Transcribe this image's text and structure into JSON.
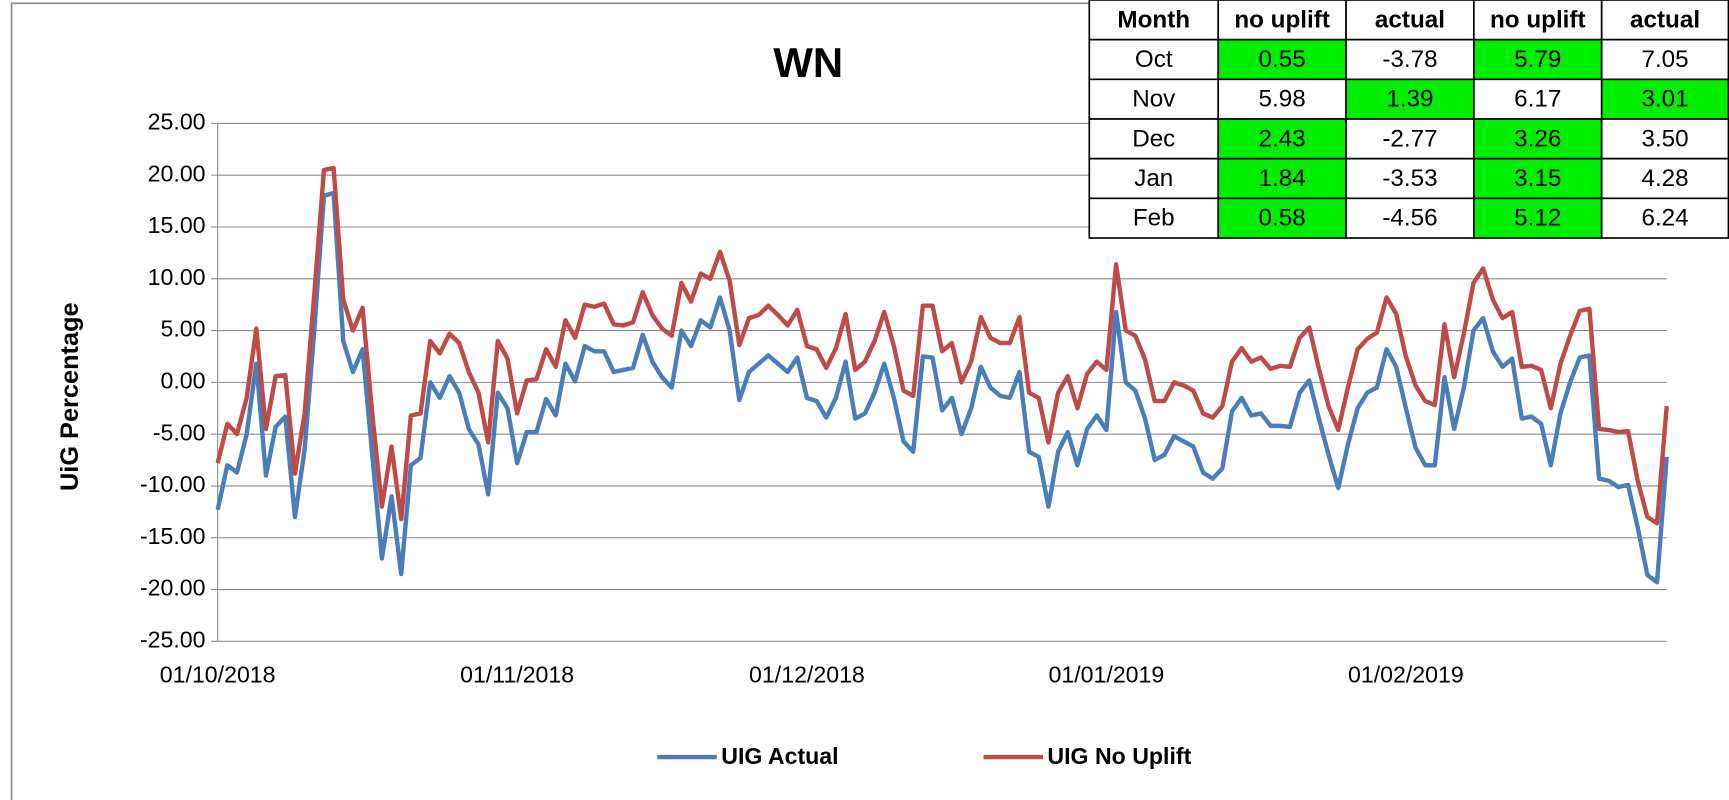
{
  "chart_data": {
    "type": "line",
    "title": "WN",
    "y_label": "UiG Percentage",
    "categories": [
      "01/10/2018",
      null,
      null,
      null,
      null,
      null,
      null,
      null,
      null,
      null,
      null,
      null,
      null,
      null,
      null,
      null,
      null,
      null,
      null,
      null,
      null,
      null,
      null,
      null,
      null,
      null,
      null,
      null,
      null,
      null,
      null,
      "01/11/2018",
      null,
      null,
      null,
      null,
      null,
      null,
      null,
      null,
      null,
      null,
      null,
      null,
      null,
      null,
      null,
      null,
      null,
      null,
      null,
      null,
      null,
      null,
      null,
      null,
      null,
      null,
      null,
      null,
      null,
      "01/12/2018",
      null,
      null,
      null,
      null,
      null,
      null,
      null,
      null,
      null,
      null,
      null,
      null,
      null,
      null,
      null,
      null,
      null,
      null,
      null,
      null,
      null,
      null,
      null,
      null,
      null,
      null,
      null,
      null,
      null,
      null,
      "01/01/2019",
      null,
      null,
      null,
      null,
      null,
      null,
      null,
      null,
      null,
      null,
      null,
      null,
      null,
      null,
      null,
      null,
      null,
      null,
      null,
      null,
      null,
      null,
      null,
      null,
      null,
      null,
      null,
      null,
      null,
      null,
      "01/02/2019",
      null,
      null,
      null,
      null,
      null,
      null,
      null,
      null,
      null,
      null,
      null,
      null,
      null,
      null,
      null,
      null,
      null,
      null,
      null,
      null,
      null,
      null,
      null,
      null,
      null,
      null,
      null
    ],
    "series": [
      {
        "name": "UIG Actual",
        "color": "#4a7ebb",
        "values": [
          -12.3,
          -8.0,
          -8.7,
          -5.0,
          1.8,
          -9.0,
          -4.3,
          -3.3,
          -13.0,
          -6.5,
          5.0,
          18.0,
          18.3,
          4.0,
          1.0,
          3.2,
          -7.0,
          -17.0,
          -11.0,
          -18.5,
          -8.0,
          -7.3,
          0.0,
          -1.5,
          0.6,
          -1.0,
          -4.5,
          -6.0,
          -10.8,
          -1.0,
          -2.5,
          -7.8,
          -4.8,
          -4.8,
          -1.6,
          -3.2,
          1.8,
          0.1,
          3.5,
          3.0,
          3.0,
          1.0,
          1.2,
          1.4,
          4.6,
          2.0,
          0.5,
          -0.5,
          5.0,
          3.5,
          6.0,
          5.3,
          8.2,
          5.0,
          -1.7,
          1.0,
          1.8,
          2.6,
          1.8,
          1.0,
          2.4,
          -1.5,
          -1.8,
          -3.4,
          -1.5,
          2.0,
          -3.5,
          -3.0,
          -1.0,
          1.8,
          -1.5,
          -5.7,
          -6.7,
          2.5,
          2.4,
          -2.7,
          -1.5,
          -5.0,
          -2.5,
          1.5,
          -0.5,
          -1.3,
          -1.5,
          1.0,
          -6.7,
          -7.2,
          -12.0,
          -6.7,
          -4.8,
          -8.0,
          -4.5,
          -3.2,
          -4.6,
          6.8,
          0.0,
          -0.8,
          -3.5,
          -7.5,
          -7.0,
          -5.2,
          -5.7,
          -6.2,
          -8.7,
          -9.3,
          -8.3,
          -2.8,
          -1.5,
          -3.2,
          -3.0,
          -4.2,
          -4.2,
          -4.3,
          -1.0,
          0.2,
          -3.5,
          -7.0,
          -10.2,
          -6.0,
          -2.5,
          -1.0,
          -0.5,
          3.2,
          1.5,
          -2.5,
          -6.3,
          -8.0,
          -8.0,
          0.5,
          -4.5,
          -0.5,
          5.0,
          6.2,
          3.0,
          1.5,
          2.3,
          -3.5,
          -3.3,
          -4.0,
          -8.0,
          -3.0,
          0.0,
          2.4,
          2.6,
          -9.3,
          -9.5,
          -10.1,
          -9.9,
          -14.0,
          -18.6,
          -19.3,
          -7.2
        ]
      },
      {
        "name": "UIG No Uplift",
        "color": "#be4b48",
        "values": [
          -7.8,
          -4.0,
          -5.0,
          -1.5,
          5.2,
          -4.5,
          0.6,
          0.7,
          -8.8,
          -3.0,
          8.5,
          20.5,
          20.7,
          8.0,
          5.0,
          7.2,
          -3.0,
          -12.0,
          -6.2,
          -13.2,
          -3.2,
          -3.0,
          4.0,
          2.8,
          4.7,
          3.8,
          1.0,
          -1.0,
          -5.8,
          4.0,
          2.3,
          -3.0,
          0.2,
          0.3,
          3.2,
          1.5,
          6.0,
          4.3,
          7.5,
          7.3,
          7.6,
          5.6,
          5.5,
          5.8,
          8.7,
          6.5,
          5.2,
          4.5,
          9.6,
          7.8,
          10.5,
          10.0,
          12.6,
          9.8,
          3.6,
          6.2,
          6.5,
          7.4,
          6.5,
          5.5,
          7.0,
          3.5,
          3.2,
          1.4,
          3.3,
          6.6,
          1.2,
          2.0,
          4.0,
          6.8,
          3.5,
          -0.8,
          -1.3,
          7.4,
          7.4,
          3.0,
          3.8,
          0.0,
          2.0,
          6.3,
          4.3,
          3.8,
          3.8,
          6.3,
          -1.0,
          -1.5,
          -5.8,
          -1.0,
          0.6,
          -2.5,
          0.8,
          2.0,
          1.2,
          11.4,
          5.0,
          4.5,
          2.2,
          -1.8,
          -1.8,
          0.0,
          -0.3,
          -0.8,
          -3.0,
          -3.4,
          -2.3,
          2.0,
          3.3,
          2.0,
          2.4,
          1.3,
          1.6,
          1.5,
          4.3,
          5.3,
          1.3,
          -2.3,
          -4.6,
          -0.5,
          3.2,
          4.2,
          4.8,
          8.2,
          6.6,
          2.5,
          -0.3,
          -1.8,
          -2.2,
          5.6,
          0.5,
          4.7,
          9.6,
          11.0,
          8.0,
          6.2,
          6.8,
          1.5,
          1.6,
          1.2,
          -2.5,
          1.8,
          4.5,
          6.9,
          7.1,
          -4.5,
          -4.6,
          -4.8,
          -4.7,
          -9.5,
          -13.0,
          -13.6,
          -2.3
        ]
      }
    ],
    "ylim": [
      -25,
      25
    ],
    "yticks": [
      {
        "value": -25,
        "label": "-25.00"
      },
      {
        "value": -20,
        "label": "-20.00"
      },
      {
        "value": -15,
        "label": "-15.00"
      },
      {
        "value": -10,
        "label": "-10.00"
      },
      {
        "value": -5,
        "label": "-5.00"
      },
      {
        "value": 0,
        "label": "0.00"
      },
      {
        "value": 5,
        "label": "5.00"
      },
      {
        "value": 10,
        "label": "10.00"
      },
      {
        "value": 15,
        "label": "15.00"
      },
      {
        "value": 20,
        "label": "20.00"
      },
      {
        "value": 25,
        "label": "25.00"
      }
    ],
    "grid": true,
    "legend": "bottom"
  },
  "table": {
    "columns": [
      "Month",
      "no uplift",
      "actual",
      "no uplift",
      "actual"
    ],
    "rows": [
      [
        "Oct",
        "0.55",
        "-3.78",
        "5.79",
        "7.05"
      ],
      [
        "Nov",
        "5.98",
        "1.39",
        "6.17",
        "3.01"
      ],
      [
        "Dec",
        "2.43",
        "-2.77",
        "3.26",
        "3.50"
      ],
      [
        "Jan",
        "1.84",
        "-3.53",
        "3.15",
        "4.28"
      ],
      [
        "Feb",
        "0.58",
        "-4.56",
        "5.12",
        "6.24"
      ]
    ],
    "highlight_color": "#00ee00",
    "highlight": [
      [
        1,
        3
      ],
      [
        2,
        4
      ],
      [
        1,
        3
      ],
      [
        1,
        3
      ],
      [
        1,
        3
      ]
    ]
  }
}
